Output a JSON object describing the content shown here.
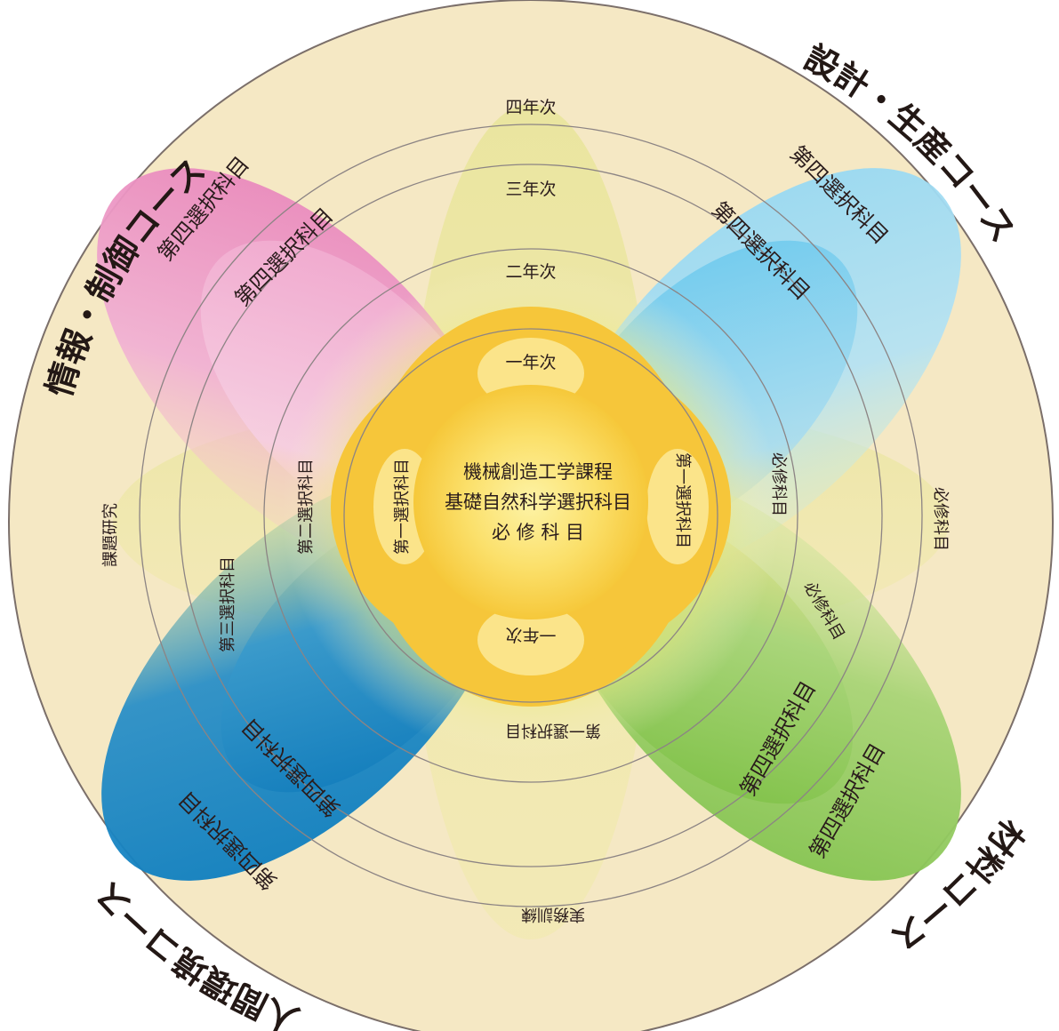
{
  "colors": {
    "outer_disc": "#f5e8c4",
    "outer_ring_stroke": "#7b6f6a",
    "inner_ring_stroke": "#8c8484",
    "center_yellow": "#f6cc3a",
    "center_light": "#fbe87a",
    "pink": "#e88ebf",
    "light_blue": "#8fd3f1",
    "dark_blue": "#0a7bc2",
    "green": "#7dc24b",
    "lime": "#e3e57a"
  },
  "courses": {
    "top_left": "情報・制御コース",
    "top_right": "設計・生産コース",
    "bottom_left": "人間環境コース",
    "bottom_right": "材料コース"
  },
  "years": {
    "fourth": "四年次",
    "third": "三年次",
    "second": "二年次",
    "first_top": "一年次",
    "first_bottom": "一年次"
  },
  "outer_ring_labels": {
    "left": "課題研究",
    "right": "必修科目",
    "bottom": "実務訓練"
  },
  "center": {
    "line1": "機械創造工学課程",
    "line2": "基礎自然科学選択科目",
    "line3": "必 修 科 目"
  },
  "petal_labels": {
    "tl_outer": "第四選択科目",
    "tl_inner": "第四選択科目",
    "tr_outer": "第四選択科目",
    "tr_inner": "第四選択科目",
    "bl_outer": "第四選択科目",
    "bl_inner": "第四選択科目",
    "br_outer": "第四選択科目",
    "br_inner": "第四選択科目",
    "third_choice_left": "第三選択科目",
    "second_choice_left": "第二選択科目",
    "first_choice_left": "第一選択科目",
    "first_choice_right": "第一選択科目",
    "first_choice_bottom": "第一選択科目",
    "required_right_upper": "必修科目",
    "required_right_lower": "必修科目"
  }
}
